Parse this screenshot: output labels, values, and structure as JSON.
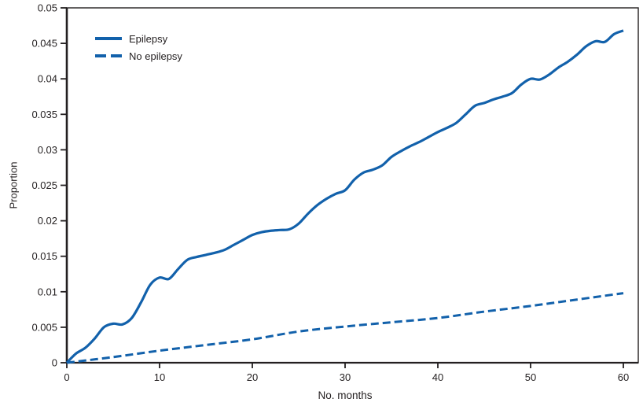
{
  "figure": {
    "background": "#ffffff",
    "frame_color": "#231f20",
    "text_color": "#231f20",
    "accent_blue": "#1261ab"
  },
  "axes": {
    "x": {
      "label": "No. months",
      "min": 0,
      "max": 60,
      "tick_labels": [
        "0",
        "10",
        "20",
        "30",
        "40",
        "50",
        "60"
      ]
    },
    "y": {
      "label": "Proportion",
      "min": 0,
      "max": 0.05,
      "tick_labels": [
        "0",
        "0.005",
        "0.01",
        "0.015",
        "0.02",
        "0.025",
        "0.03",
        "0.035",
        "0.04",
        "0.045",
        "0.05"
      ]
    }
  },
  "legend": {
    "items": [
      {
        "label": "Epilepsy",
        "style": "solid"
      },
      {
        "label": "No epilepsy",
        "style": "dashed"
      }
    ]
  },
  "chart_data": {
    "type": "line",
    "title": "",
    "xlabel": "No. months",
    "ylabel": "Proportion",
    "xlim": [
      0,
      60
    ],
    "ylim": [
      0,
      0.05
    ],
    "x_ticks": [
      0,
      10,
      20,
      30,
      40,
      50,
      60
    ],
    "y_ticks": [
      0,
      0.005,
      0.01,
      0.015,
      0.02,
      0.025,
      0.03,
      0.035,
      0.04,
      0.045,
      0.05
    ],
    "grid": false,
    "legend_position": "upper-left-inside",
    "series": [
      {
        "name": "Epilepsy",
        "style": "solid",
        "color": "#1261ab",
        "x": [
          0,
          1,
          2,
          3,
          4,
          5,
          6,
          7,
          8,
          9,
          10,
          11,
          12,
          13,
          14,
          15,
          16,
          17,
          18,
          19,
          20,
          21,
          22,
          23,
          24,
          25,
          26,
          27,
          28,
          29,
          30,
          31,
          32,
          33,
          34,
          35,
          36,
          37,
          38,
          39,
          40,
          41,
          42,
          43,
          44,
          45,
          46,
          47,
          48,
          49,
          50,
          51,
          52,
          53,
          54,
          55,
          56,
          57,
          58,
          59,
          60
        ],
        "y": [
          0.0,
          0.0013,
          0.0021,
          0.0034,
          0.005,
          0.0055,
          0.0054,
          0.0063,
          0.0085,
          0.011,
          0.012,
          0.0118,
          0.0132,
          0.0145,
          0.0149,
          0.0152,
          0.0155,
          0.0159,
          0.0166,
          0.0173,
          0.018,
          0.0184,
          0.0186,
          0.0187,
          0.0188,
          0.0196,
          0.021,
          0.0222,
          0.0231,
          0.0238,
          0.0243,
          0.0258,
          0.0268,
          0.0272,
          0.0278,
          0.029,
          0.0298,
          0.0305,
          0.0311,
          0.0318,
          0.0325,
          0.0331,
          0.0338,
          0.035,
          0.0362,
          0.0366,
          0.0371,
          0.0375,
          0.038,
          0.0392,
          0.04,
          0.0399,
          0.0406,
          0.0416,
          0.0424,
          0.0434,
          0.0446,
          0.0453,
          0.0452,
          0.0463,
          0.0468
        ]
      },
      {
        "name": "No epilepsy",
        "style": "dashed",
        "color": "#1261ab",
        "x": [
          0,
          5,
          10,
          15,
          20,
          25,
          30,
          35,
          40,
          45,
          50,
          55,
          60
        ],
        "y": [
          0.0,
          0.0008,
          0.0017,
          0.0025,
          0.0033,
          0.0044,
          0.0051,
          0.0057,
          0.0063,
          0.0072,
          0.008,
          0.0089,
          0.0098
        ]
      }
    ]
  }
}
